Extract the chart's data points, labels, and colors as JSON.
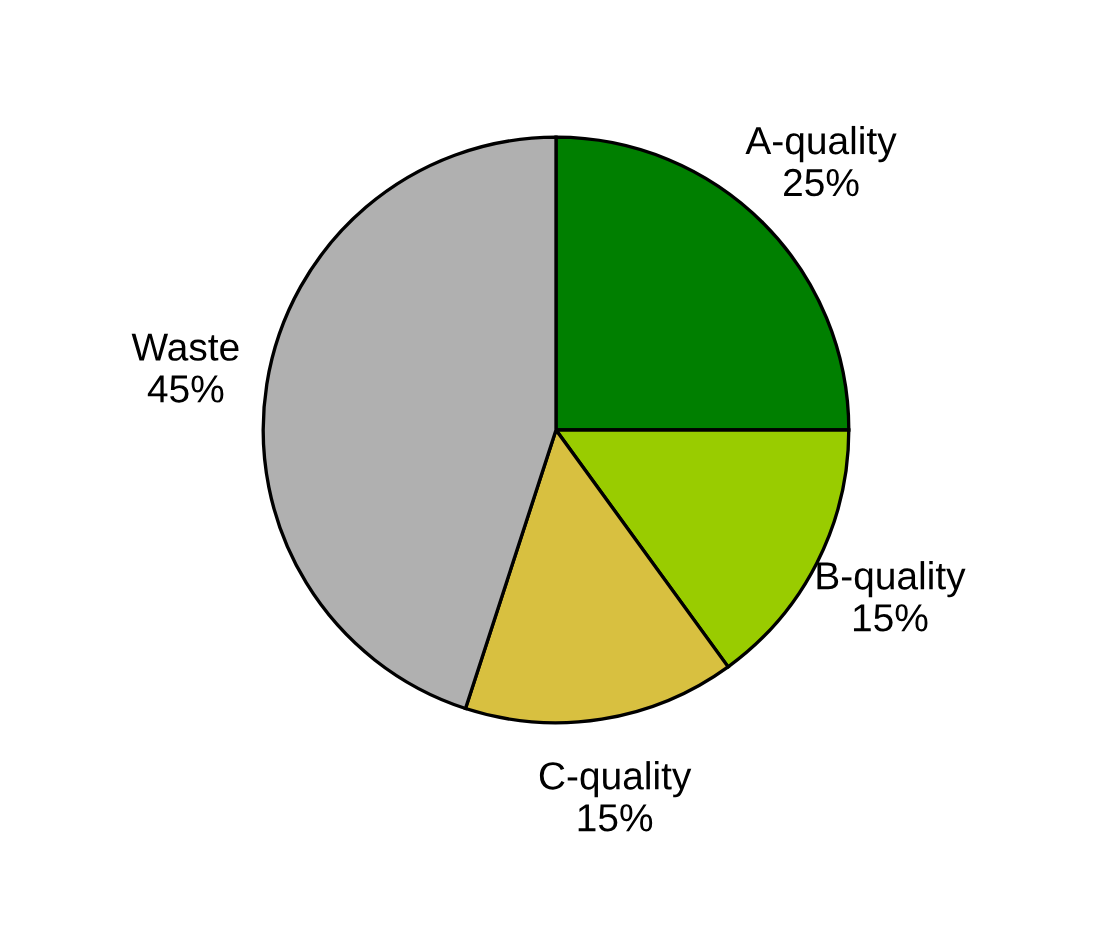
{
  "chart_data": {
    "type": "pie",
    "categories": [
      "A-quality",
      "B-quality",
      "C-quality",
      "Waste"
    ],
    "values": [
      25,
      15,
      15,
      45
    ],
    "value_labels": [
      "25%",
      "15%",
      "15%",
      "45%"
    ],
    "colors": [
      "#007f00",
      "#99cc00",
      "#d8c040",
      "#b0b0b0"
    ]
  }
}
